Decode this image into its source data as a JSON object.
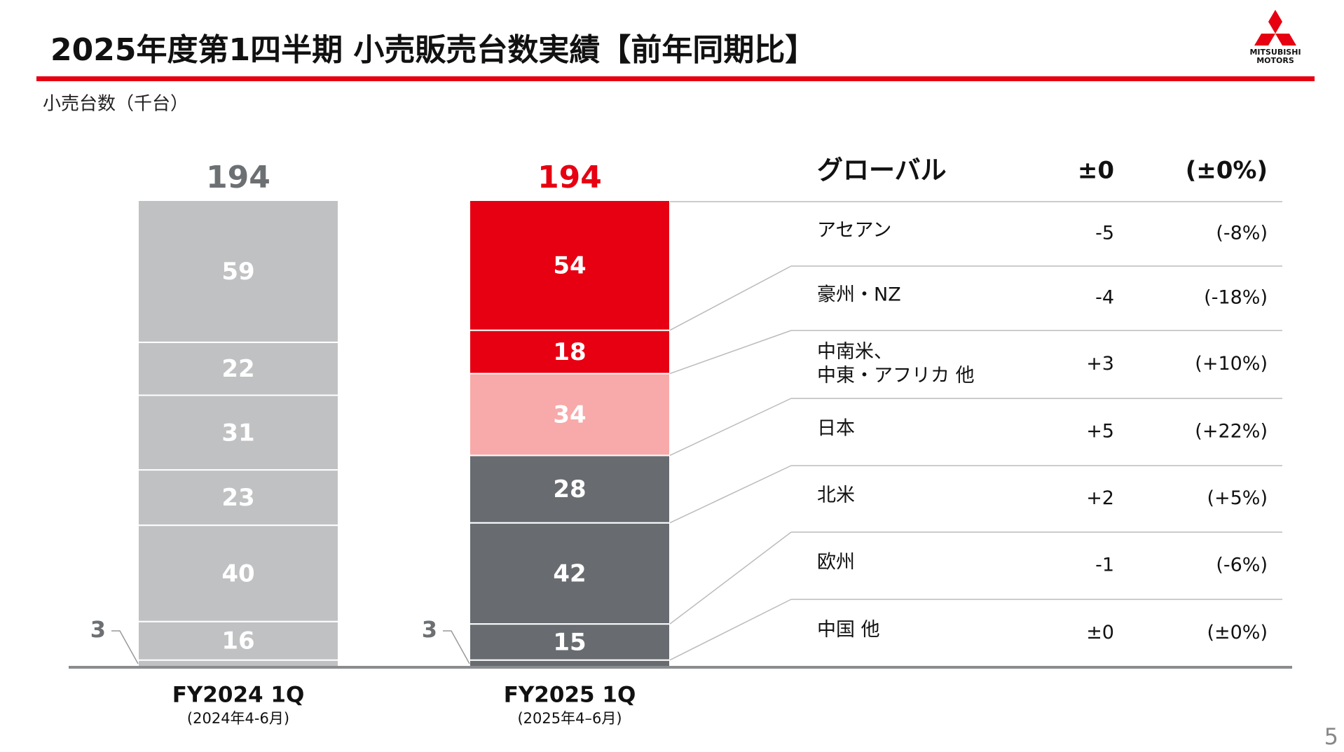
{
  "header": {
    "title": "2025年度第1四半期 小売販売台数実績【前年同期比】",
    "logo": [
      "MITSUBISHI",
      "MOTORS"
    ]
  },
  "page_number": 5,
  "chart_data": {
    "type": "stacked_bar",
    "unit_label": "小売台数（千台）",
    "categories": [
      "FY2024 1Q",
      "FY2025 1Q"
    ],
    "category_notes": [
      "(2024年4-6月)",
      "(2025年4–6月)"
    ],
    "totals": [
      194,
      194
    ],
    "total_colors": [
      "#6d7073",
      "#e60012"
    ],
    "total_name": "グローバル",
    "total_change": "±0",
    "total_change_pct": "(±0%)",
    "series": [
      {
        "name": "中国 他",
        "colors": [
          "#bfc1c3",
          "#686c70"
        ],
        "values": [
          3,
          3
        ],
        "change": "±0",
        "change_pct": "(±0%)"
      },
      {
        "name": "欧州",
        "colors": [
          "#bfc1c3",
          "#686c70"
        ],
        "values": [
          16,
          15
        ],
        "change": "-1",
        "change_pct": "(-6%)"
      },
      {
        "name": "北米",
        "colors": [
          "#bfc1c3",
          "#686c70"
        ],
        "values": [
          40,
          42
        ],
        "change": "+2",
        "change_pct": "(+5%)"
      },
      {
        "name": "日本",
        "colors": [
          "#bfc1c3",
          "#686c70"
        ],
        "values": [
          23,
          28
        ],
        "change": "+5",
        "change_pct": "(+22%)"
      },
      {
        "name": [
          "中南米、",
          "中東・アフリカ 他"
        ],
        "colors": [
          "#bfc1c3",
          "#f8a9a9"
        ],
        "values": [
          31,
          34
        ],
        "change": "+3",
        "change_pct": "(+10%)"
      },
      {
        "name": "豪州・NZ",
        "colors": [
          "#bfc1c3",
          "#e60012"
        ],
        "values": [
          22,
          18
        ],
        "change": "-4",
        "change_pct": "(-18%)"
      },
      {
        "name": "アセアン",
        "colors": [
          "#bfc1c3",
          "#e60012"
        ],
        "values": [
          59,
          54
        ],
        "change": "-5",
        "change_pct": "(-8%)"
      }
    ]
  }
}
